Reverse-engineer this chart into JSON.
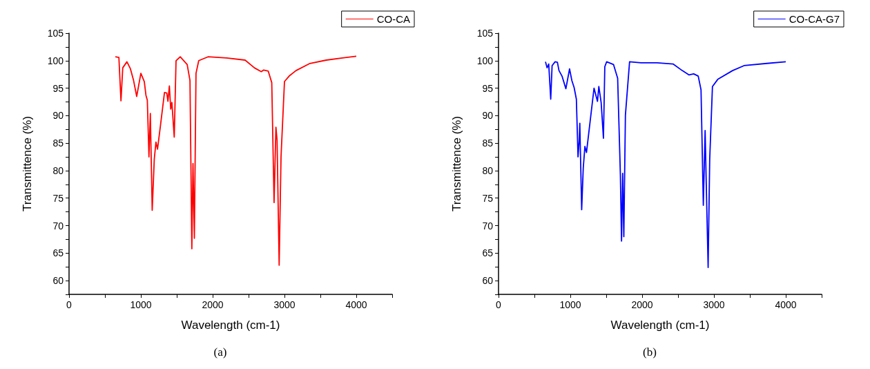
{
  "chart_data": [
    {
      "type": "line",
      "xlabel": "Wavelength (cm-1)",
      "ylabel": "Transmittence (%)",
      "annotations": [
        "(a)"
      ],
      "legend": "top right",
      "grid": false,
      "marker": "none",
      "line_style": "solid",
      "xlim": [
        0,
        4500
      ],
      "ylim": [
        57.5,
        105
      ],
      "xticks": [
        0,
        {
          "value": 500,
          "label": null
        },
        1000,
        {
          "value": 1500,
          "label": null
        },
        2000,
        {
          "value": 2500,
          "label": null
        },
        3000,
        {
          "value": 3500,
          "label": null
        },
        4000,
        {
          "value": 4500,
          "label": null
        }
      ],
      "yticks": [
        {
          "value": 57.5,
          "label": null
        },
        60,
        {
          "value": 62.5,
          "label": null
        },
        65,
        {
          "value": 67.5,
          "label": null
        },
        70,
        {
          "value": 72.5,
          "label": null
        },
        75,
        {
          "value": 77.5,
          "label": null
        },
        80,
        {
          "value": 82.5,
          "label": null
        },
        85,
        {
          "value": 87.5,
          "label": null
        },
        90,
        {
          "value": 92.5,
          "label": null
        },
        95,
        {
          "value": 97.5,
          "label": null
        },
        100,
        {
          "value": 102.5,
          "label": null
        },
        105
      ],
      "series": [
        {
          "name": "CO-CA",
          "color": "#ff0000",
          "x": [
            645,
            694,
            723,
            748,
            806,
            855,
            897,
            942,
            1000,
            1048,
            1071,
            1090,
            1113,
            1132,
            1158,
            1187,
            1210,
            1232,
            1271,
            1329,
            1361,
            1377,
            1397,
            1416,
            1432,
            1465,
            1490,
            1548,
            1645,
            1684,
            1710,
            1726,
            1745,
            1768,
            1806,
            1935,
            2194,
            2452,
            2581,
            2677,
            2710,
            2774,
            2823,
            2855,
            2881,
            2897,
            2926,
            2952,
            3000,
            3065,
            3161,
            3355,
            3581,
            3806,
            4000
          ],
          "values": [
            100.7,
            100.6,
            92.7,
            98.7,
            99.8,
            98.5,
            96.5,
            93.5,
            97.7,
            96.2,
            93.7,
            92.8,
            82.5,
            90.4,
            72.8,
            82.1,
            85.2,
            83.9,
            88.0,
            94.2,
            94.1,
            92.6,
            95.4,
            91.2,
            92.4,
            86.1,
            100.0,
            100.7,
            99.3,
            96.4,
            65.8,
            81.3,
            67.7,
            97.7,
            100.0,
            100.7,
            100.5,
            100.1,
            98.7,
            98.0,
            98.3,
            98.1,
            96.0,
            74.2,
            87.9,
            85.5,
            62.8,
            82.5,
            96.2,
            97.2,
            98.2,
            99.5,
            100.1,
            100.5,
            100.8
          ]
        }
      ]
    },
    {
      "type": "line",
      "xlabel": "Wavelength (cm-1)",
      "ylabel": "Transmittence (%)",
      "annotations": [
        "(b)"
      ],
      "legend": "top right",
      "grid": false,
      "marker": "none",
      "line_style": "solid",
      "xlim": [
        0,
        4500
      ],
      "ylim": [
        57.5,
        105
      ],
      "xticks": [
        0,
        {
          "value": 500,
          "label": null
        },
        1000,
        {
          "value": 1500,
          "label": null
        },
        2000,
        {
          "value": 2500,
          "label": null
        },
        3000,
        {
          "value": 3500,
          "label": null
        },
        4000,
        {
          "value": 4500,
          "label": null
        }
      ],
      "yticks": [
        {
          "value": 57.5,
          "label": null
        },
        60,
        {
          "value": 62.5,
          "label": null
        },
        65,
        {
          "value": 67.5,
          "label": null
        },
        70,
        {
          "value": 72.5,
          "label": null
        },
        75,
        {
          "value": 77.5,
          "label": null
        },
        80,
        {
          "value": 82.5,
          "label": null
        },
        85,
        {
          "value": 87.5,
          "label": null
        },
        90,
        {
          "value": 92.5,
          "label": null
        },
        95,
        {
          "value": 97.5,
          "label": null
        },
        100,
        {
          "value": 102.5,
          "label": null
        },
        105
      ],
      "series": [
        {
          "name": "CO-CA-G7",
          "color": "#0000ff",
          "x": [
            654,
            676,
            699,
            727,
            746,
            788,
            820,
            842,
            884,
            938,
            989,
            1021,
            1053,
            1084,
            1107,
            1123,
            1132,
            1142,
            1158,
            1180,
            1203,
            1225,
            1276,
            1330,
            1378,
            1397,
            1429,
            1461,
            1480,
            1506,
            1601,
            1659,
            1697,
            1713,
            1729,
            1745,
            1767,
            1825,
            1984,
            2207,
            2430,
            2558,
            2654,
            2718,
            2781,
            2820,
            2852,
            2877,
            2893,
            2919,
            2941,
            2979,
            3053,
            3260,
            3419,
            3738,
            4000
          ],
          "values": [
            99.8,
            98.7,
            99.4,
            93.0,
            99.1,
            99.8,
            99.7,
            98.2,
            97.2,
            94.9,
            98.5,
            96.4,
            95.1,
            93.0,
            82.5,
            85.4,
            88.6,
            82.5,
            72.9,
            80.5,
            84.4,
            83.3,
            89.0,
            95.0,
            92.6,
            95.3,
            92.4,
            85.9,
            98.9,
            99.8,
            99.3,
            96.8,
            79.2,
            67.2,
            79.5,
            68.0,
            90.1,
            99.8,
            99.6,
            99.6,
            99.4,
            98.2,
            97.4,
            97.6,
            97.2,
            94.7,
            73.7,
            87.3,
            77.5,
            62.4,
            82.1,
            95.3,
            96.6,
            98.2,
            99.1,
            99.5,
            99.8
          ]
        }
      ]
    }
  ]
}
